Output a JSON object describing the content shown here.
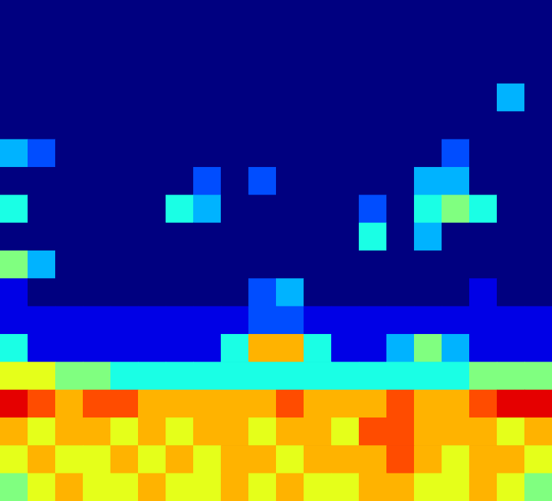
{
  "chart_data": {
    "type": "heatmap",
    "tick_labels": false,
    "grid": false,
    "xlim": [
      0,
      20
    ],
    "ylim": [
      0,
      18
    ],
    "zlim": [
      0,
      10
    ],
    "cells": [
      [
        0,
        0,
        0,
        0,
        0,
        0,
        0,
        0,
        0,
        0,
        0,
        0,
        0,
        0,
        0,
        0,
        0,
        0,
        0,
        0
      ],
      [
        0,
        0,
        0,
        0,
        0,
        0,
        0,
        0,
        0,
        0,
        0,
        0,
        0,
        0,
        0,
        0,
        0,
        0,
        0,
        0
      ],
      [
        0,
        0,
        0,
        0,
        0,
        0,
        0,
        0,
        0,
        0,
        0,
        0,
        0,
        0,
        0,
        0,
        0,
        0,
        0,
        0
      ],
      [
        0,
        0,
        0,
        0,
        0,
        0,
        0,
        0,
        0,
        0,
        0,
        0,
        0,
        0,
        0,
        0,
        0,
        0,
        3,
        0
      ],
      [
        0,
        0,
        0,
        0,
        0,
        0,
        0,
        0,
        0,
        0,
        0,
        0,
        0,
        0,
        0,
        0,
        0,
        0,
        0,
        0
      ],
      [
        3,
        2,
        0,
        0,
        0,
        0,
        0,
        0,
        0,
        0,
        0,
        0,
        0,
        0,
        0,
        0,
        2,
        0,
        0,
        0
      ],
      [
        0,
        0,
        0,
        0,
        0,
        0,
        0,
        2,
        0,
        2,
        0,
        0,
        0,
        0,
        0,
        3,
        3,
        0,
        0,
        0
      ],
      [
        4,
        0,
        0,
        0,
        0,
        0,
        4,
        3,
        0,
        0,
        0,
        0,
        0,
        2,
        0,
        4,
        5,
        4,
        0,
        0
      ],
      [
        0,
        0,
        0,
        0,
        0,
        0,
        0,
        0,
        0,
        0,
        0,
        0,
        0,
        4,
        0,
        3,
        0,
        0,
        0,
        0
      ],
      [
        5,
        3,
        0,
        0,
        0,
        0,
        0,
        0,
        0,
        0,
        0,
        0,
        0,
        0,
        0,
        0,
        0,
        0,
        0,
        0
      ],
      [
        1,
        0,
        0,
        0,
        0,
        0,
        0,
        0,
        0,
        2,
        3,
        0,
        0,
        0,
        0,
        0,
        0,
        1,
        0,
        0
      ],
      [
        1,
        1,
        1,
        1,
        1,
        1,
        1,
        1,
        1,
        2,
        2,
        1,
        1,
        1,
        1,
        1,
        1,
        1,
        1,
        1
      ],
      [
        4,
        1,
        1,
        1,
        1,
        1,
        1,
        1,
        4,
        7,
        7,
        4,
        1,
        1,
        3,
        5,
        3,
        1,
        1,
        1
      ],
      [
        6,
        6,
        5,
        5,
        4,
        4,
        4,
        4,
        4,
        4,
        4,
        4,
        4,
        4,
        4,
        4,
        4,
        5,
        5,
        5
      ],
      [
        9,
        8,
        7,
        8,
        8,
        7,
        7,
        7,
        7,
        7,
        8,
        7,
        7,
        7,
        8,
        7,
        7,
        8,
        9,
        9
      ],
      [
        7,
        6,
        7,
        7,
        6,
        7,
        6,
        7,
        7,
        6,
        7,
        7,
        6,
        8,
        8,
        7,
        7,
        7,
        6,
        7
      ],
      [
        6,
        7,
        6,
        6,
        7,
        6,
        7,
        6,
        7,
        7,
        6,
        7,
        7,
        7,
        8,
        7,
        6,
        7,
        7,
        6
      ],
      [
        5,
        6,
        7,
        6,
        6,
        7,
        6,
        6,
        7,
        6,
        7,
        6,
        6,
        7,
        7,
        6,
        6,
        7,
        6,
        5
      ]
    ]
  }
}
